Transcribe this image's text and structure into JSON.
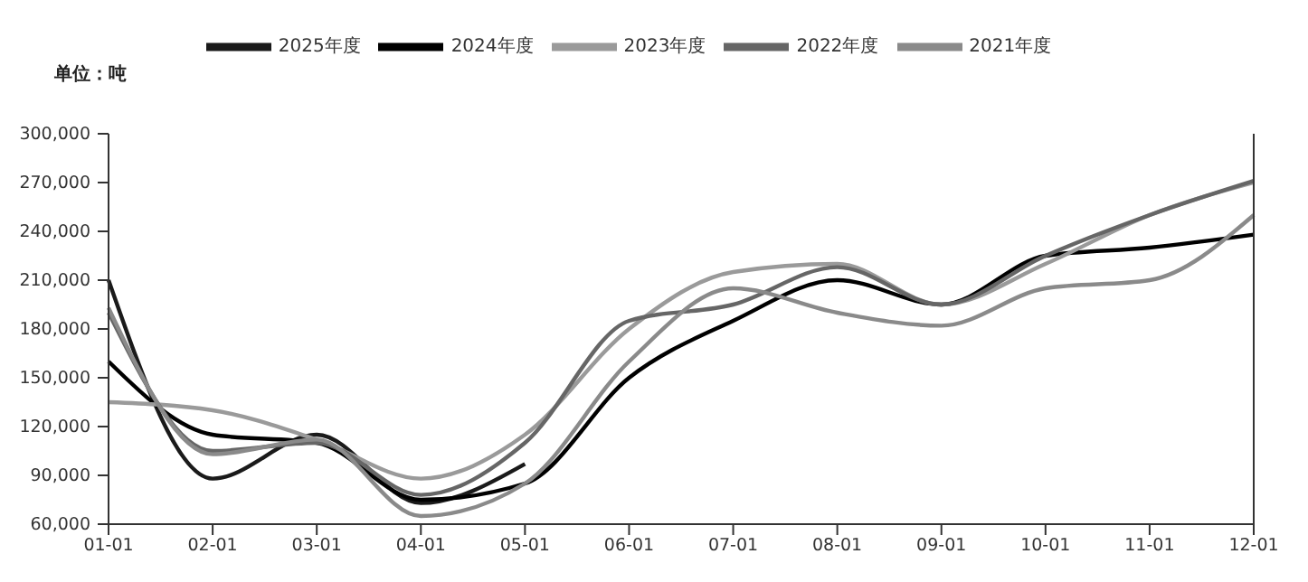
{
  "chart_data": {
    "type": "line",
    "annotations": [
      "单位：吨"
    ],
    "categories": [
      "01-01",
      "02-01",
      "03-01",
      "04-01",
      "05-01",
      "06-01",
      "07-01",
      "08-01",
      "09-01",
      "10-01",
      "11-01",
      "12-01"
    ],
    "series": [
      {
        "name": "2025年度",
        "color": "#1a1a1a",
        "values": [
          210000,
          88000,
          115000,
          73000,
          97000,
          null,
          null,
          null,
          null,
          null,
          null,
          null
        ]
      },
      {
        "name": "2024年度",
        "color": "#000000",
        "values": [
          160000,
          115000,
          110000,
          75000,
          85000,
          150000,
          185000,
          210000,
          195000,
          225000,
          230000,
          238000
        ]
      },
      {
        "name": "2023年度",
        "color": "#9a9a9a",
        "values": [
          135000,
          130000,
          112000,
          88000,
          115000,
          180000,
          215000,
          220000,
          195000,
          220000,
          250000,
          270000
        ]
      },
      {
        "name": "2022年度",
        "color": "#666666",
        "values": [
          190000,
          105000,
          110000,
          78000,
          110000,
          185000,
          195000,
          218000,
          195000,
          225000,
          250000,
          271000
        ]
      },
      {
        "name": "2021年度",
        "color": "#8a8a8a",
        "values": [
          193000,
          103000,
          112000,
          65000,
          85000,
          160000,
          205000,
          190000,
          182000,
          205000,
          210000,
          250000
        ]
      }
    ],
    "ylim": [
      60000,
      300000
    ],
    "yticks": [
      {
        "value": 60000,
        "label": "60,000"
      },
      {
        "value": 90000,
        "label": "90,000"
      },
      {
        "value": 120000,
        "label": "120,000"
      },
      {
        "value": 150000,
        "label": "150,000"
      },
      {
        "value": 180000,
        "label": "180,000"
      },
      {
        "value": 210000,
        "label": "210,000"
      },
      {
        "value": 240000,
        "label": "240,000"
      },
      {
        "value": 270000,
        "label": "270,000"
      },
      {
        "value": 300000,
        "label": "300,000"
      }
    ],
    "legend": "top",
    "marker": "none",
    "line_style": "solid"
  }
}
